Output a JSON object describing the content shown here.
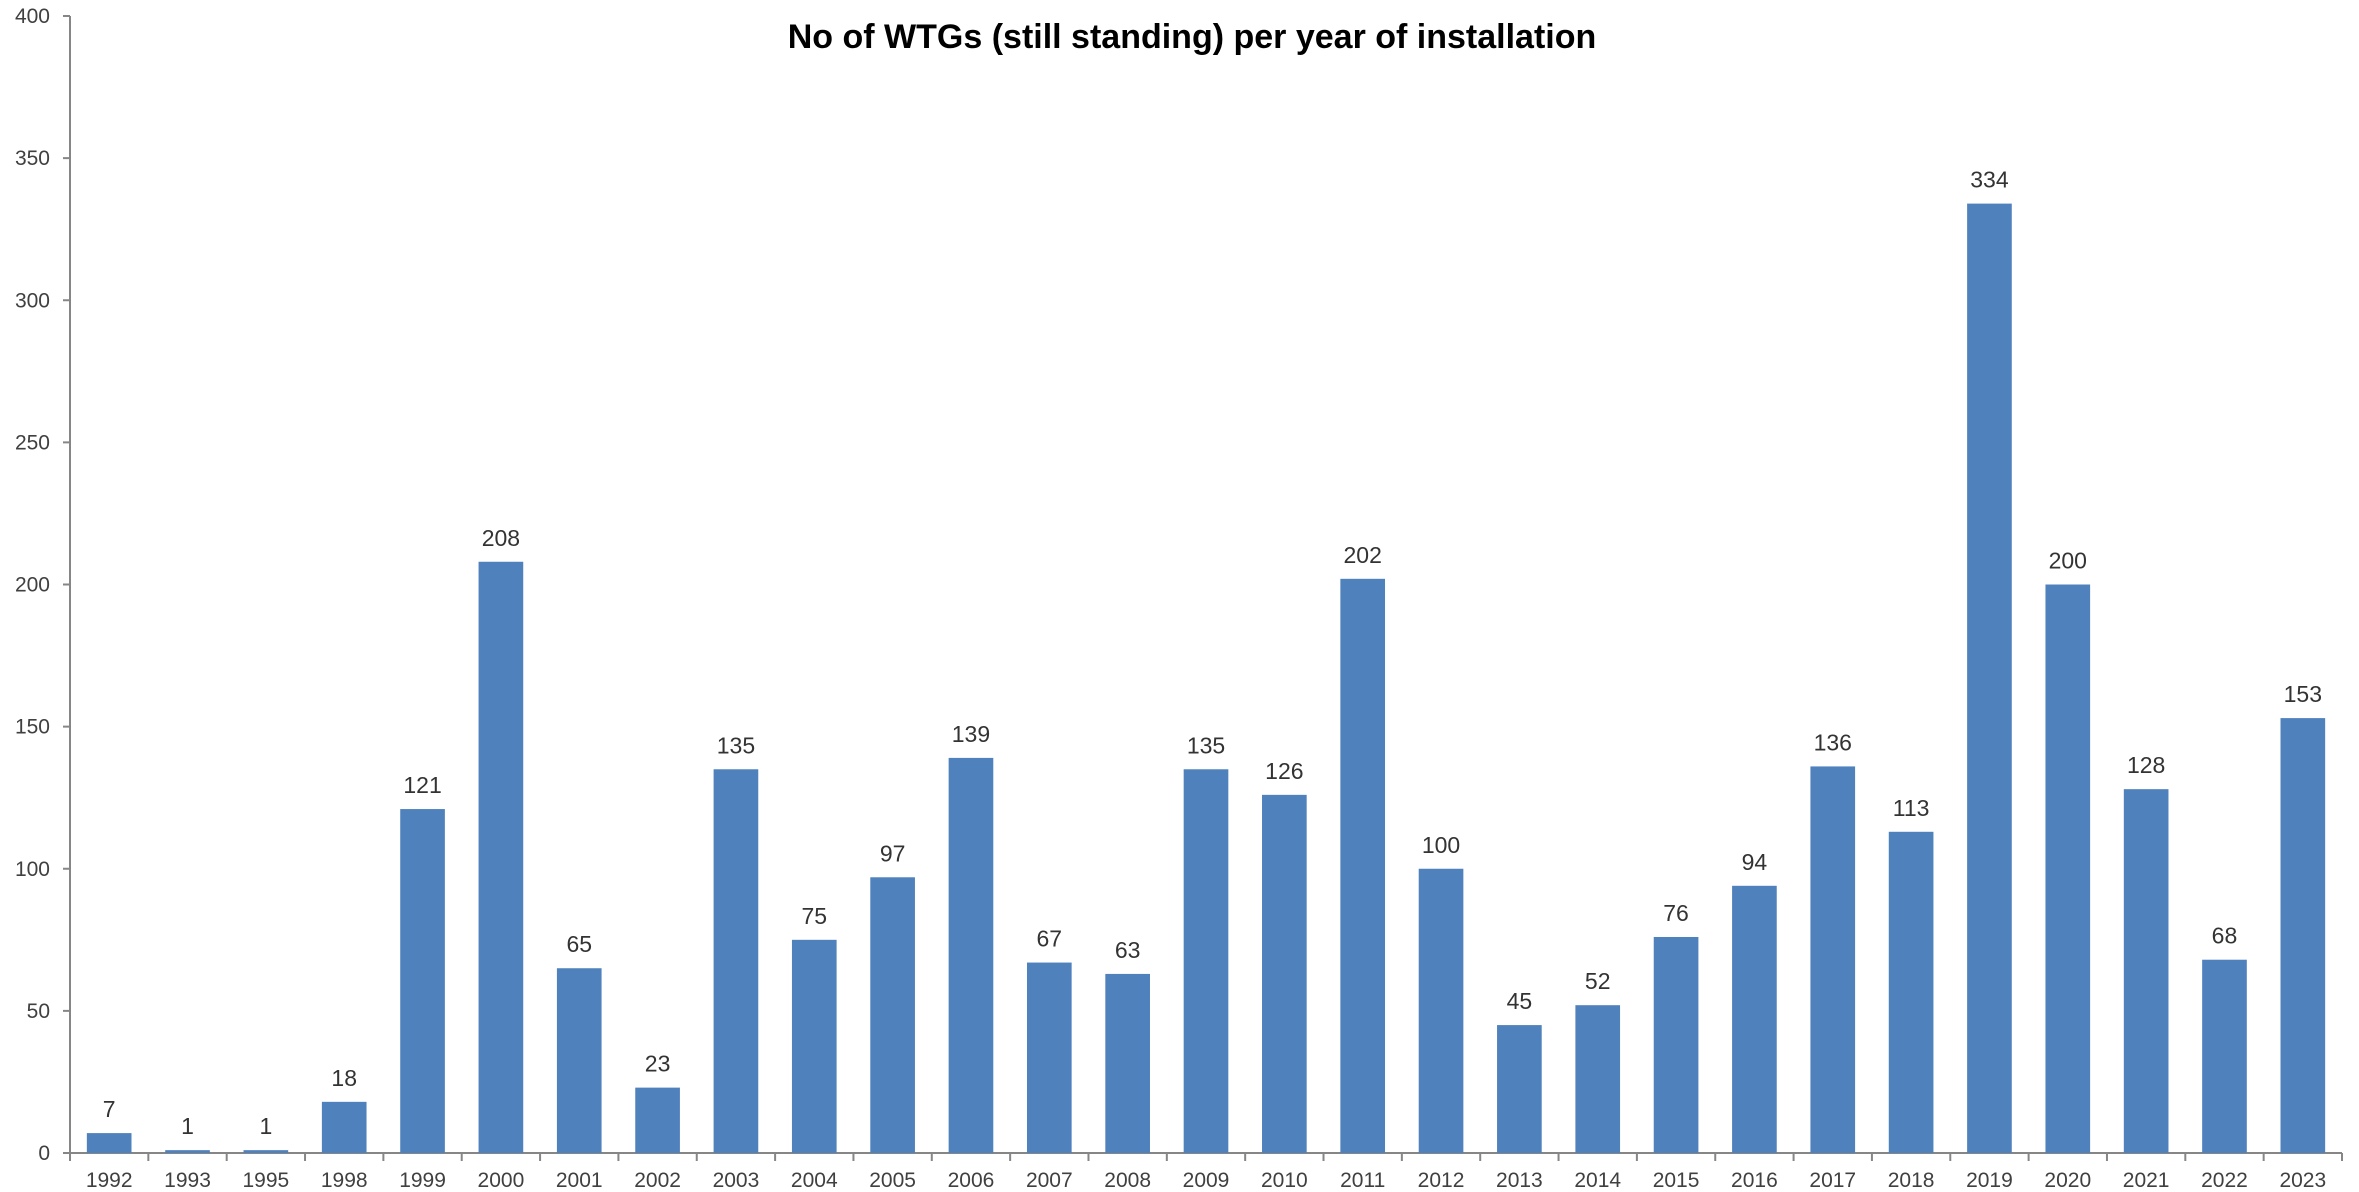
{
  "chart_data": {
    "type": "bar",
    "title": "No of WTGs (still standing) per year of installation",
    "xlabel": "",
    "ylabel": "",
    "ylim": [
      0,
      400
    ],
    "yticks": [
      "0",
      "50",
      "100",
      "150",
      "200",
      "250",
      "300",
      "350",
      "400"
    ],
    "grid": false,
    "legend": "none",
    "bar_color": "#4F81BD",
    "categories": [
      "1992",
      "1993",
      "1995",
      "1998",
      "1999",
      "2000",
      "2001",
      "2002",
      "2003",
      "2004",
      "2005",
      "2006",
      "2007",
      "2008",
      "2009",
      "2010",
      "2011",
      "2012",
      "2013",
      "2014",
      "2015",
      "2016",
      "2017",
      "2018",
      "2019",
      "2020",
      "2021",
      "2022",
      "2023"
    ],
    "values": [
      7,
      1,
      1,
      18,
      121,
      208,
      65,
      23,
      135,
      75,
      97,
      139,
      67,
      63,
      135,
      126,
      202,
      100,
      45,
      52,
      76,
      94,
      136,
      113,
      334,
      200,
      128,
      68,
      153
    ],
    "data_labels": [
      "7",
      "1",
      "1",
      "18",
      "121",
      "208",
      "65",
      "23",
      "135",
      "75",
      "97",
      "139",
      "67",
      "63",
      "135",
      "126",
      "202",
      "100",
      "45",
      "52",
      "76",
      "94",
      "136",
      "113",
      "334",
      "200",
      "128",
      "68",
      "153"
    ]
  }
}
